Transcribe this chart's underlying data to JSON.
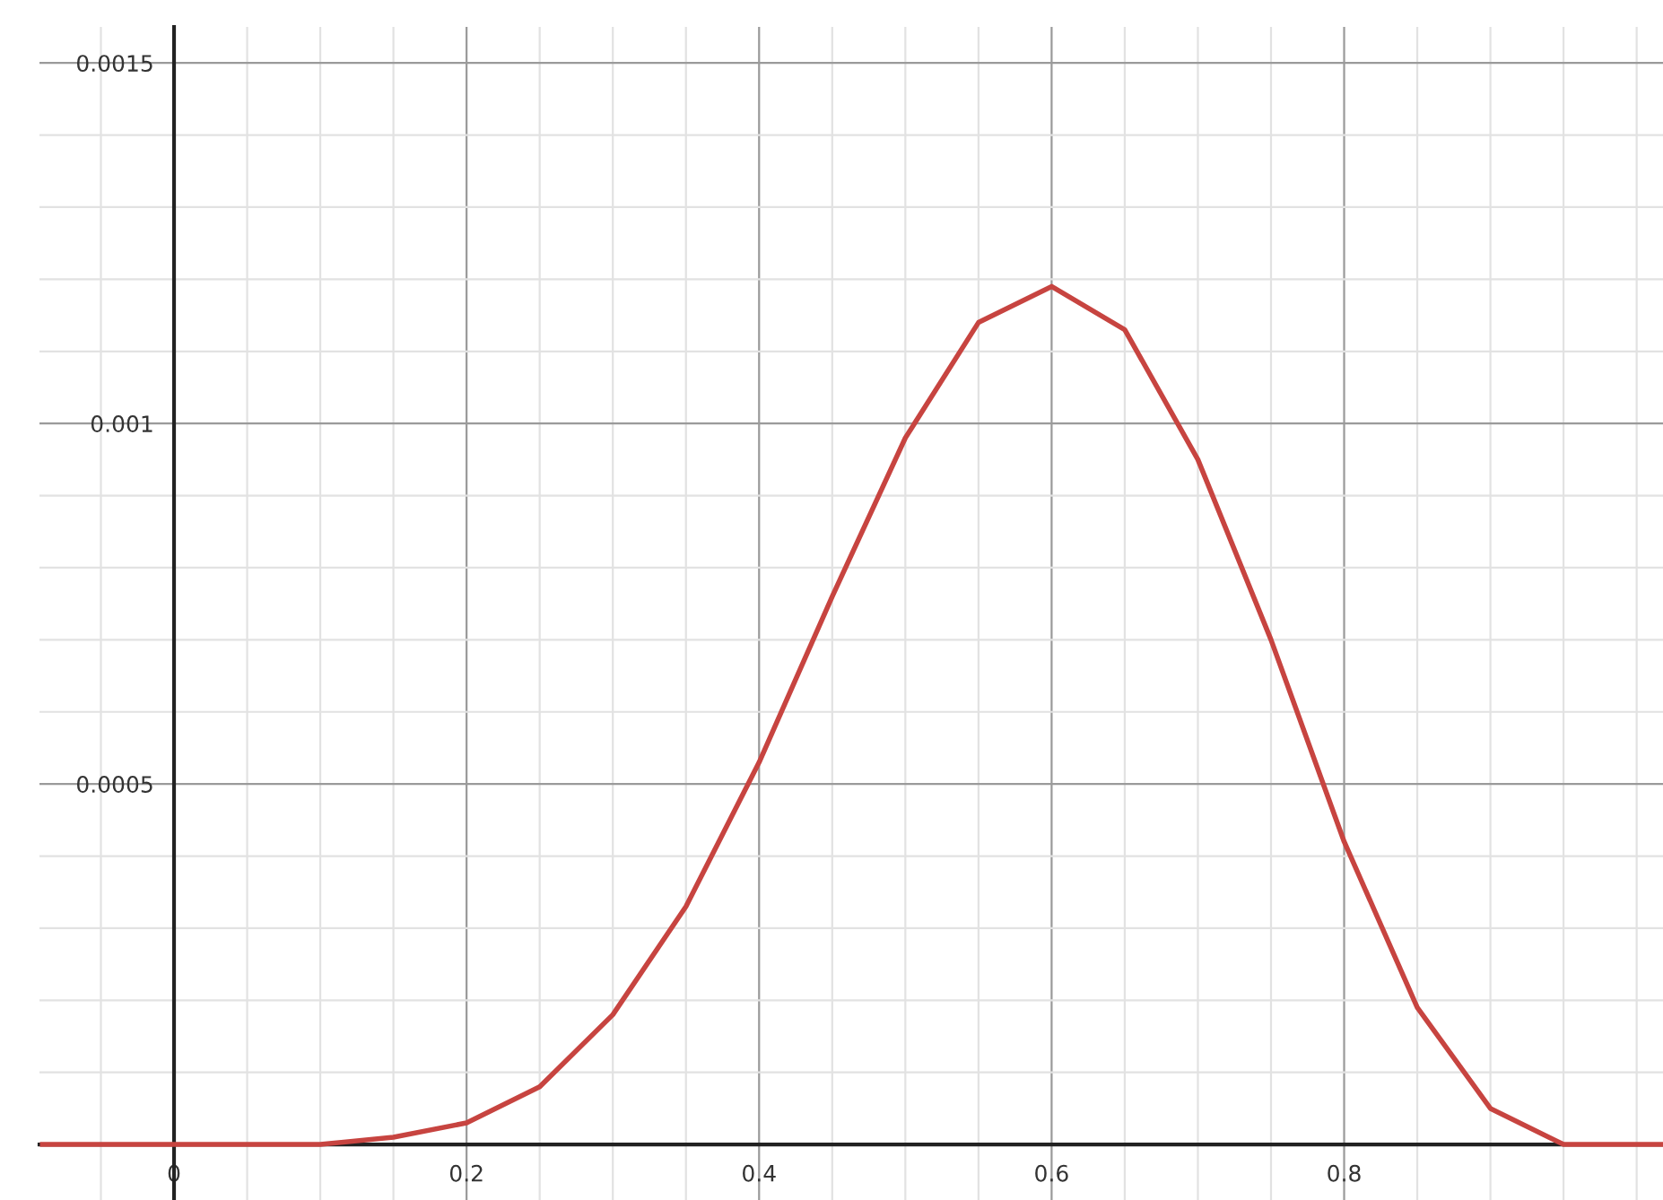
{
  "chart_data": {
    "type": "line",
    "x": [
      -0.09,
      0,
      0.05,
      0.1,
      0.15,
      0.2,
      0.25,
      0.3,
      0.35,
      0.4,
      0.45,
      0.5,
      0.55,
      0.6,
      0.65,
      0.7,
      0.75,
      0.8,
      0.85,
      0.9,
      0.95,
      1.0,
      1.018
    ],
    "series": [
      {
        "color": "#c74440",
        "values": [
          0,
          0,
          0,
          0,
          1e-05,
          3e-05,
          8e-05,
          0.00018,
          0.00033,
          0.00053,
          0.00076,
          0.00098,
          0.00114,
          0.00119,
          0.00113,
          0.00095,
          0.0007,
          0.00042,
          0.00019,
          5e-05,
          0,
          0,
          0
        ]
      }
    ],
    "xlim": [
      -0.092,
      1.018
    ],
    "ylim": [
      -7.7e-05,
      0.00155
    ],
    "xticks": [
      0,
      0.2,
      0.4,
      0.6,
      0.8
    ],
    "yticks": [
      {
        "value": 0.0005,
        "label": "0.0005"
      },
      {
        "value": 0.001,
        "label": "0.001"
      },
      {
        "value": 0.0015,
        "label": "0.0015"
      }
    ],
    "grid": true,
    "marker": "none",
    "line_style": "solid"
  }
}
